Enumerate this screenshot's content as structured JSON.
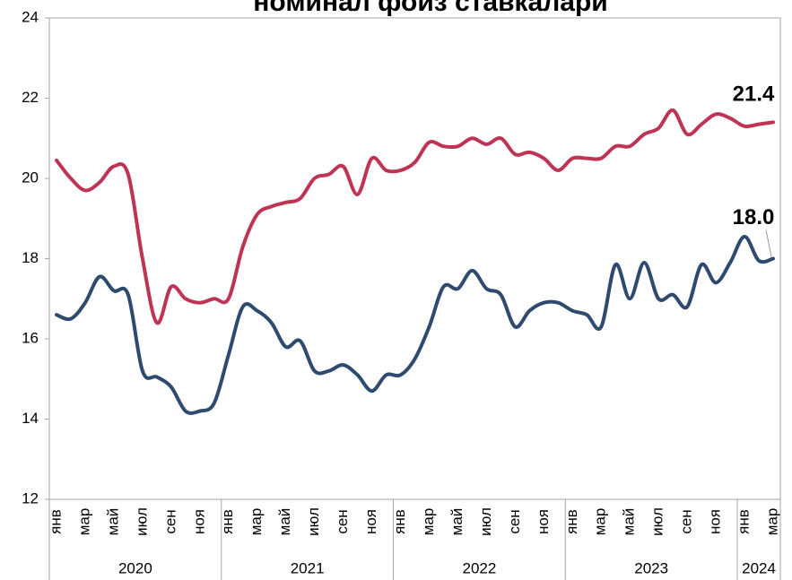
{
  "chart_data": {
    "type": "line",
    "title": "номинал фоиз ставкалари",
    "categories": [
      "янв",
      null,
      "мар",
      null,
      "май",
      null,
      "июл",
      null,
      "сен",
      null,
      "ноя",
      null,
      "янв",
      null,
      "мар",
      null,
      "май",
      null,
      "июл",
      null,
      "сен",
      null,
      "ноя",
      null,
      "янв",
      null,
      "мар",
      null,
      "май",
      null,
      "июл",
      null,
      "сен",
      null,
      "ноя",
      null,
      "янв",
      null,
      "мар",
      null,
      "май",
      null,
      "июл",
      null,
      "сен",
      null,
      "ноя",
      null,
      "янв",
      null,
      "мар"
    ],
    "x_groups": [
      "2020",
      "2021",
      "2022",
      "2023",
      "2024"
    ],
    "series": [
      {
        "color": "#be3455",
        "values": [
          20.45,
          20.0,
          19.7,
          19.9,
          20.3,
          20.1,
          18.0,
          16.4,
          17.3,
          17.0,
          16.9,
          17.0,
          17.0,
          18.3,
          19.1,
          19.3,
          19.4,
          19.5,
          20.0,
          20.1,
          20.3,
          19.6,
          20.5,
          20.2,
          20.2,
          20.4,
          20.9,
          20.8,
          20.8,
          21.0,
          20.85,
          21.0,
          20.6,
          20.65,
          20.5,
          20.2,
          20.5,
          20.5,
          20.5,
          20.8,
          20.8,
          21.1,
          21.25,
          21.7,
          21.1,
          21.35,
          21.6,
          21.5,
          21.3,
          21.35,
          21.4
        ],
        "value_labels": [
          null,
          null,
          null,
          null,
          null,
          null,
          null,
          null,
          null,
          null,
          null,
          null,
          null,
          null,
          null,
          null,
          null,
          null,
          null,
          null,
          null,
          null,
          null,
          null,
          null,
          null,
          null,
          null,
          null,
          null,
          null,
          null,
          null,
          null,
          null,
          null,
          null,
          null,
          null,
          null,
          null,
          null,
          null,
          null,
          null,
          null,
          null,
          null,
          null,
          null,
          "21.4"
        ]
      },
      {
        "color": "#2e4a6e",
        "values": [
          16.6,
          16.5,
          16.9,
          17.55,
          17.2,
          17.1,
          15.2,
          15.05,
          14.8,
          14.2,
          14.2,
          14.4,
          15.6,
          16.8,
          16.7,
          16.4,
          15.8,
          15.95,
          15.2,
          15.2,
          15.35,
          15.1,
          14.7,
          15.1,
          15.1,
          15.5,
          16.3,
          17.3,
          17.25,
          17.7,
          17.25,
          17.1,
          16.3,
          16.7,
          16.9,
          16.9,
          16.7,
          16.6,
          16.3,
          17.85,
          17.0,
          17.9,
          17.0,
          17.1,
          16.8,
          17.85,
          17.4,
          17.9,
          18.55,
          17.95,
          18.0
        ],
        "value_labels": [
          null,
          null,
          null,
          null,
          null,
          null,
          null,
          null,
          null,
          null,
          null,
          null,
          null,
          null,
          null,
          null,
          null,
          null,
          null,
          null,
          null,
          null,
          null,
          null,
          null,
          null,
          null,
          null,
          null,
          null,
          null,
          null,
          null,
          null,
          null,
          null,
          null,
          null,
          null,
          null,
          null,
          null,
          null,
          null,
          null,
          null,
          null,
          null,
          null,
          null,
          "18.0"
        ]
      }
    ],
    "ylim": [
      12,
      24
    ],
    "yticks": [
      12,
      14,
      16,
      18,
      20,
      22,
      24
    ],
    "grid": false
  }
}
